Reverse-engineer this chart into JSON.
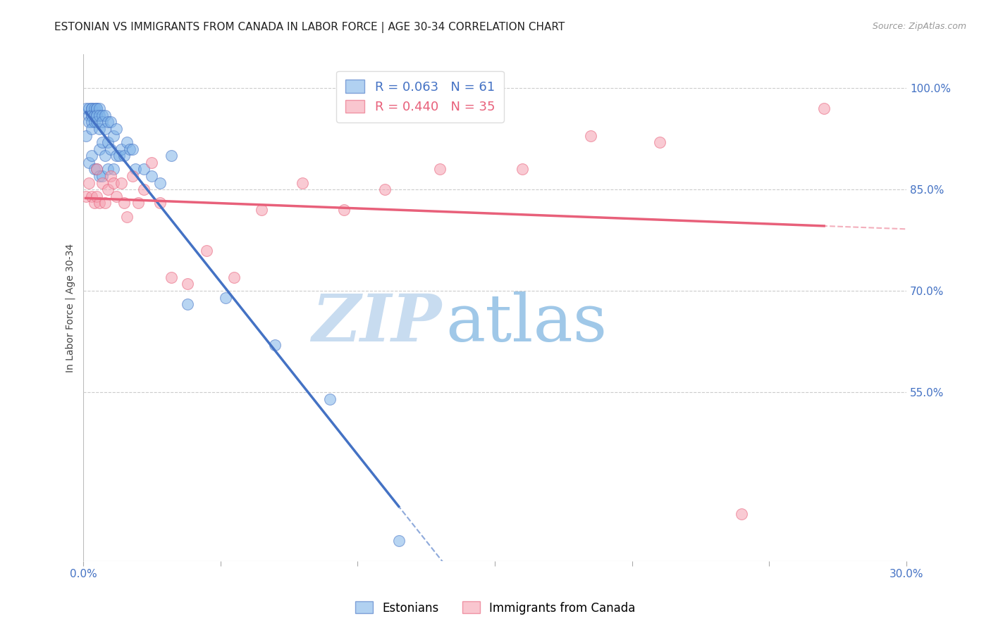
{
  "title": "ESTONIAN VS IMMIGRANTS FROM CANADA IN LABOR FORCE | AGE 30-34 CORRELATION CHART",
  "source": "Source: ZipAtlas.com",
  "ylabel": "In Labor Force | Age 30-34",
  "xlim": [
    0.0,
    0.3
  ],
  "ylim": [
    0.3,
    1.05
  ],
  "ytick_right": [
    0.55,
    0.7,
    0.85,
    1.0
  ],
  "ytick_right_labels": [
    "55.0%",
    "70.0%",
    "85.0%",
    "100.0%"
  ],
  "blue_R": 0.063,
  "blue_N": 61,
  "pink_R": 0.44,
  "pink_N": 35,
  "blue_color": "#7EB3E8",
  "pink_color": "#F5A0B0",
  "blue_line_color": "#4472C4",
  "pink_line_color": "#E8607A",
  "blue_scatter_x": [
    0.001,
    0.001,
    0.002,
    0.002,
    0.002,
    0.002,
    0.003,
    0.003,
    0.003,
    0.003,
    0.003,
    0.003,
    0.003,
    0.004,
    0.004,
    0.004,
    0.004,
    0.004,
    0.005,
    0.005,
    0.005,
    0.005,
    0.005,
    0.005,
    0.006,
    0.006,
    0.006,
    0.006,
    0.006,
    0.007,
    0.007,
    0.007,
    0.007,
    0.008,
    0.008,
    0.008,
    0.009,
    0.009,
    0.009,
    0.01,
    0.01,
    0.011,
    0.011,
    0.012,
    0.012,
    0.013,
    0.014,
    0.015,
    0.016,
    0.017,
    0.018,
    0.019,
    0.022,
    0.025,
    0.028,
    0.032,
    0.038,
    0.052,
    0.07,
    0.09,
    0.115
  ],
  "blue_scatter_y": [
    0.97,
    0.93,
    0.97,
    0.96,
    0.95,
    0.89,
    0.97,
    0.97,
    0.96,
    0.96,
    0.95,
    0.94,
    0.9,
    0.97,
    0.96,
    0.96,
    0.95,
    0.88,
    0.97,
    0.97,
    0.96,
    0.96,
    0.95,
    0.88,
    0.97,
    0.96,
    0.94,
    0.91,
    0.87,
    0.96,
    0.95,
    0.92,
    0.87,
    0.96,
    0.94,
    0.9,
    0.95,
    0.92,
    0.88,
    0.95,
    0.91,
    0.93,
    0.88,
    0.94,
    0.9,
    0.9,
    0.91,
    0.9,
    0.92,
    0.91,
    0.91,
    0.88,
    0.88,
    0.87,
    0.86,
    0.9,
    0.68,
    0.69,
    0.62,
    0.54,
    0.33
  ],
  "pink_scatter_x": [
    0.001,
    0.002,
    0.003,
    0.004,
    0.005,
    0.005,
    0.006,
    0.007,
    0.008,
    0.009,
    0.01,
    0.011,
    0.012,
    0.014,
    0.015,
    0.016,
    0.018,
    0.02,
    0.022,
    0.025,
    0.028,
    0.032,
    0.038,
    0.045,
    0.055,
    0.065,
    0.08,
    0.095,
    0.11,
    0.13,
    0.16,
    0.185,
    0.21,
    0.24,
    0.27
  ],
  "pink_scatter_y": [
    0.84,
    0.86,
    0.84,
    0.83,
    0.88,
    0.84,
    0.83,
    0.86,
    0.83,
    0.85,
    0.87,
    0.86,
    0.84,
    0.86,
    0.83,
    0.81,
    0.87,
    0.83,
    0.85,
    0.89,
    0.83,
    0.72,
    0.71,
    0.76,
    0.72,
    0.82,
    0.86,
    0.82,
    0.85,
    0.88,
    0.88,
    0.93,
    0.92,
    0.37,
    0.97
  ],
  "grid_color": "#CCCCCC",
  "watermark_zip": "ZIP",
  "watermark_atlas": "atlas",
  "watermark_color_zip": "#C8DCF0",
  "watermark_color_atlas": "#A0C8E8",
  "background_color": "#FFFFFF",
  "title_fontsize": 11,
  "axis_label_fontsize": 10
}
